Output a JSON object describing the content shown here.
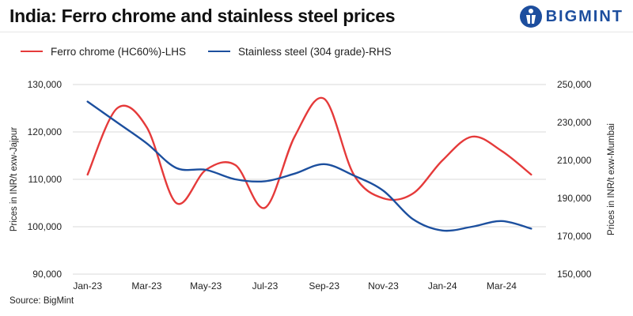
{
  "title": "India: Ferro chrome and stainless steel prices",
  "brand": {
    "name": "BIGMINT",
    "color": "#1d4e9e"
  },
  "source": "Source: BigMint",
  "chart_data": {
    "type": "line",
    "x": [
      "Jan-23",
      "Feb-23",
      "Mar-23",
      "Apr-23",
      "May-23",
      "Jun-23",
      "Jul-23",
      "Aug-23",
      "Sep-23",
      "Oct-23",
      "Nov-23",
      "Dec-23",
      "Jan-24",
      "Feb-24",
      "Mar-24",
      "Apr-24"
    ],
    "x_tick_labels": [
      "Jan-23",
      "Mar-23",
      "May-23",
      "Jul-23",
      "Sep-23",
      "Nov-23",
      "Jan-24",
      "Mar-24"
    ],
    "ylabel_left": "Prices in INR/t exw-Jajpur",
    "ylabel_right": "Prices in INR/t exw-Mumbai",
    "ylim_left": [
      90000,
      130000
    ],
    "ylim_right": [
      150000,
      250000
    ],
    "yticks_left": [
      "90,000",
      "100,000",
      "110,000",
      "120,000",
      "130,000"
    ],
    "yticks_right": [
      "150,000",
      "170,000",
      "190,000",
      "210,000",
      "230,000",
      "250,000"
    ],
    "legend_position": "top-left",
    "grid": "horizontal",
    "series": [
      {
        "name": "Ferro chrome (HC60%)-LHS",
        "axis": "left",
        "color": "#e53a3a",
        "values": [
          111000,
          125000,
          121000,
          105000,
          112000,
          113000,
          104000,
          119000,
          127000,
          111000,
          106000,
          107000,
          114000,
          119000,
          116000,
          111000
        ]
      },
      {
        "name": "Stainless steel (304 grade)-RHS",
        "axis": "right",
        "color": "#1c4f9e",
        "values": [
          241000,
          230000,
          219000,
          206000,
          205000,
          200000,
          199000,
          203000,
          208000,
          202000,
          194000,
          179000,
          173000,
          175000,
          178000,
          174000
        ]
      }
    ]
  }
}
